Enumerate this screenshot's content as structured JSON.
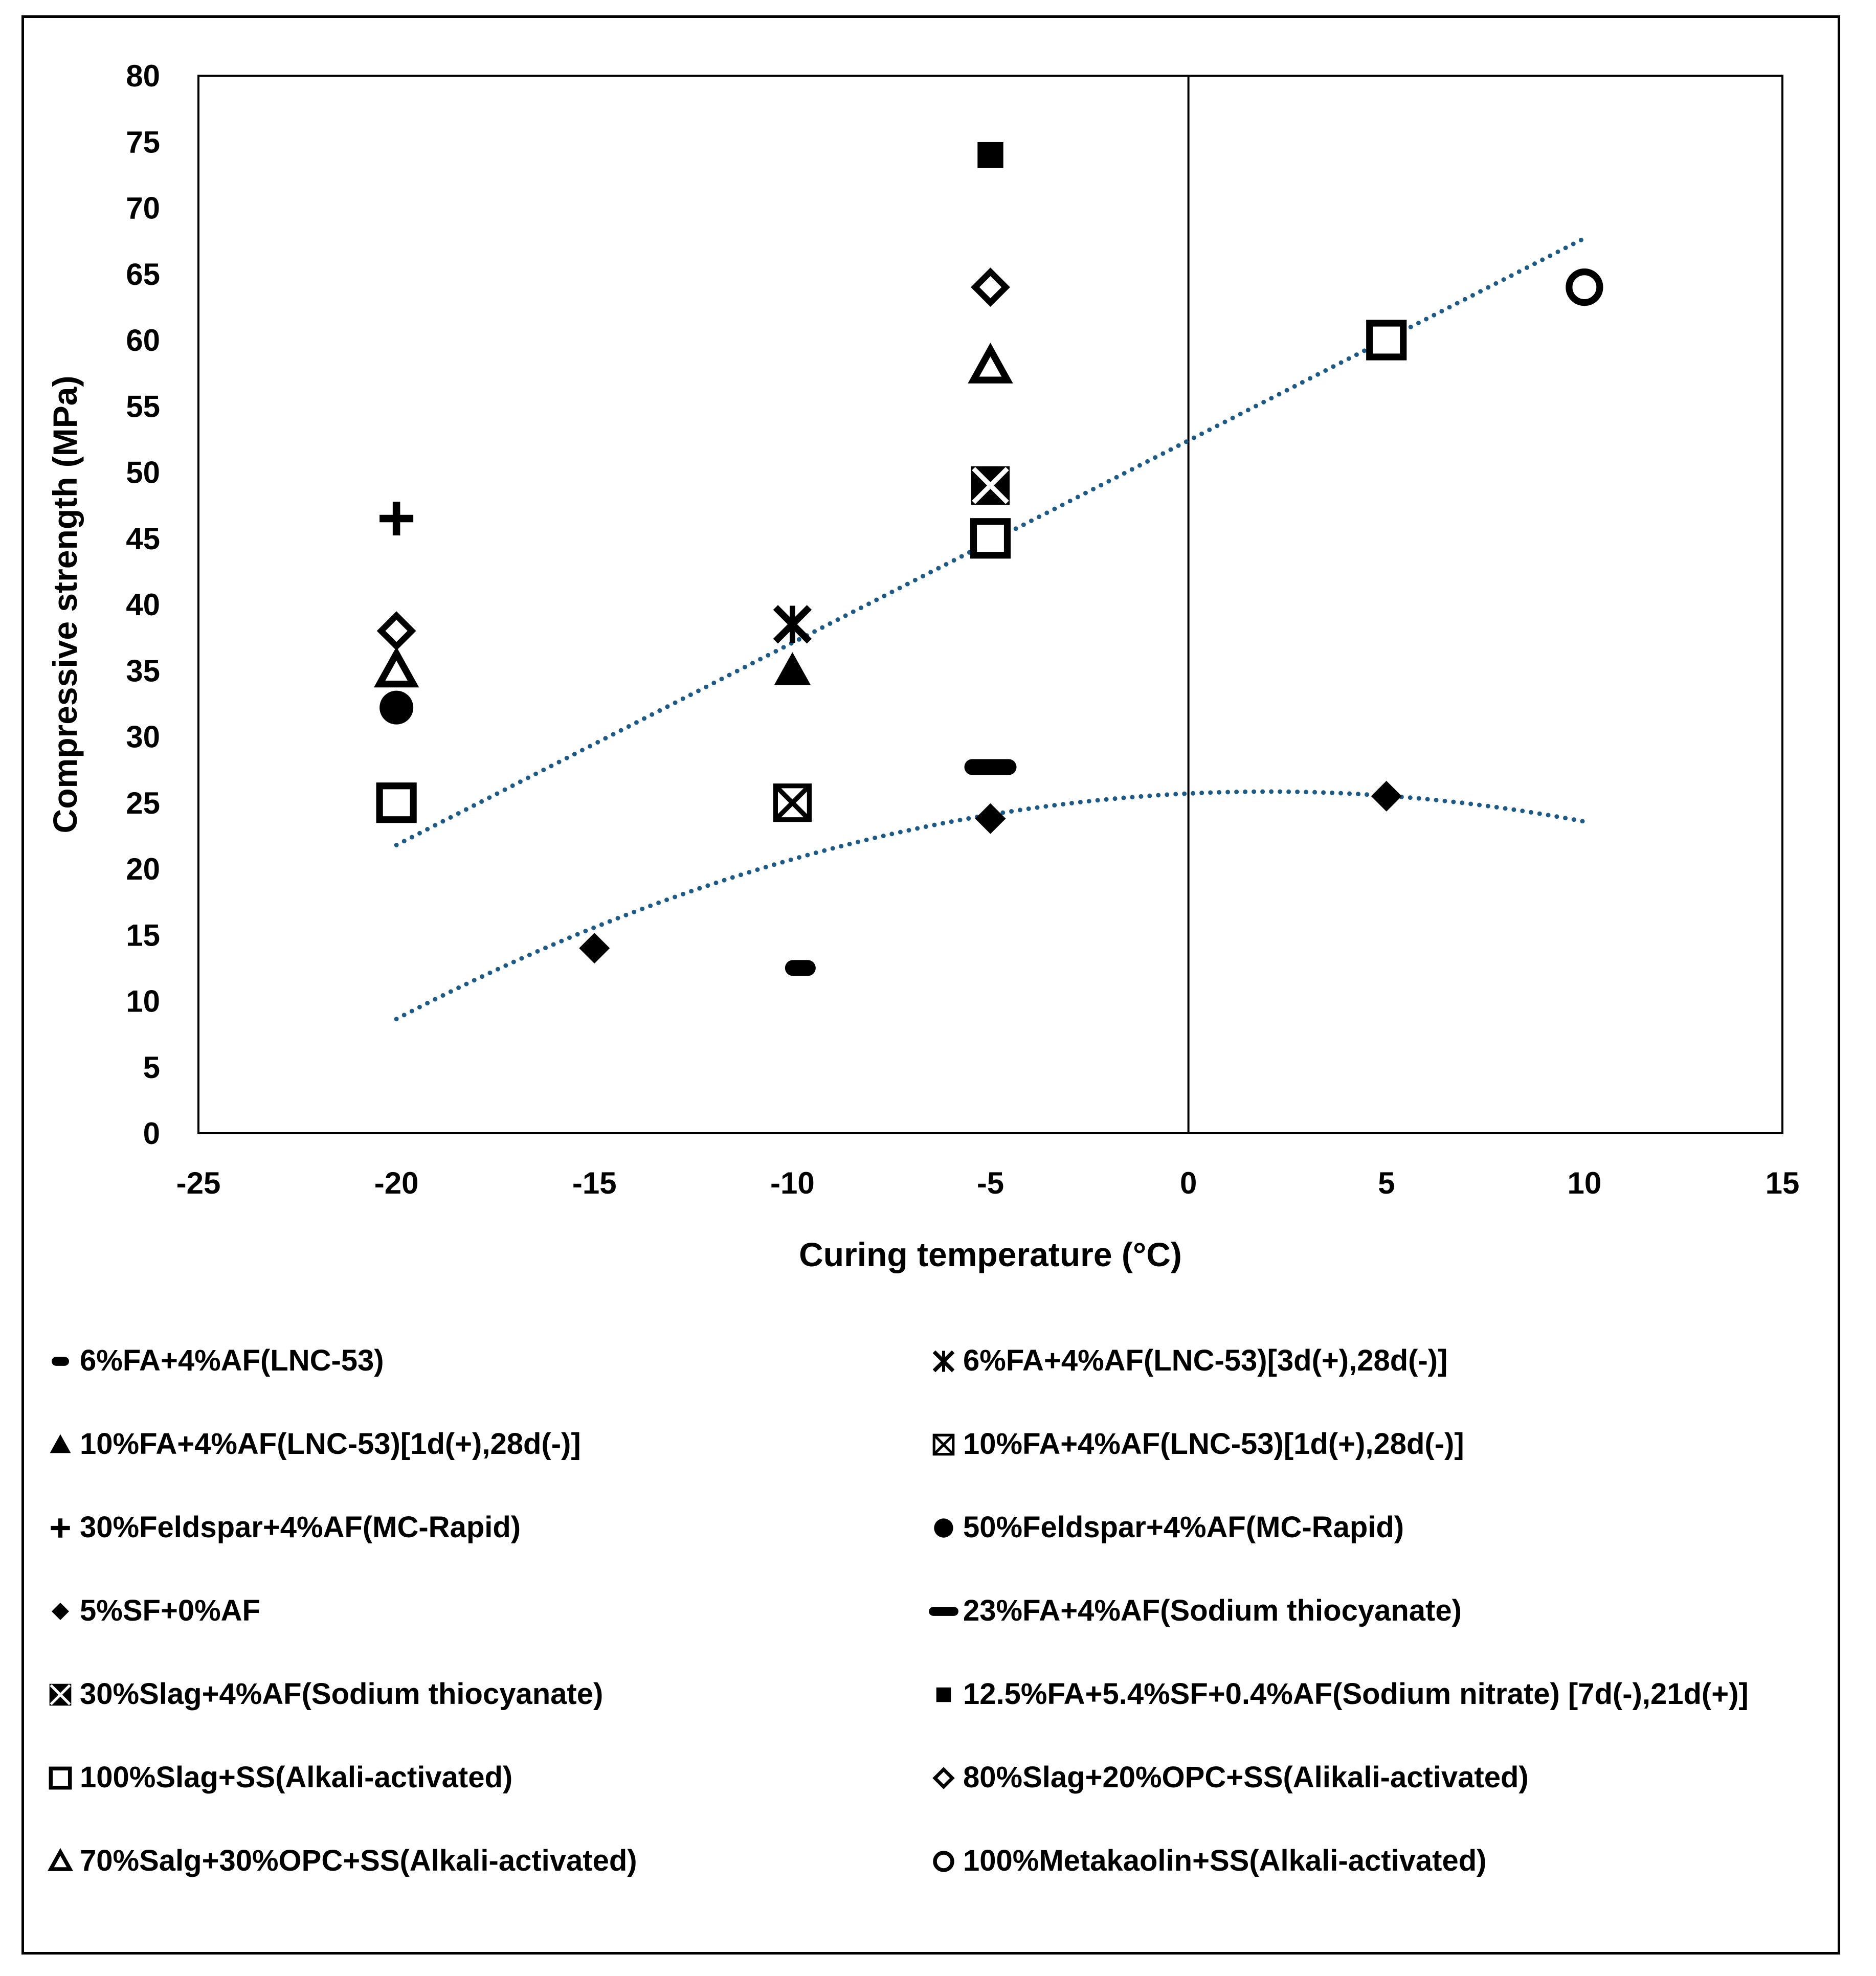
{
  "chart_data": {
    "type": "scatter",
    "title": "",
    "xlabel": "Curing temperature (°C)",
    "ylabel": "Compressive strength (MPa)",
    "xlim": [
      -25,
      15
    ],
    "ylim": [
      0,
      80
    ],
    "xticks": [
      -25,
      -20,
      -15,
      -10,
      -5,
      0,
      5,
      10,
      15
    ],
    "yticks": [
      0,
      5,
      10,
      15,
      20,
      25,
      30,
      35,
      40,
      45,
      50,
      55,
      60,
      65,
      70,
      75,
      80
    ],
    "grid": false,
    "legend_position": "bottom",
    "series": [
      {
        "name": "6%FA+4%AF(LNC-53)",
        "marker": "dash",
        "points": [
          [
            -9.8,
            12.5
          ]
        ]
      },
      {
        "name": "6%FA+4%AF(LNC-53)[3d(+),28d(-)]",
        "marker": "star",
        "points": [
          [
            -10,
            38.5
          ]
        ]
      },
      {
        "name": "10%FA+4%AF(LNC-53)[1d(+),28d(-)]",
        "marker": "triangle-filled",
        "points": [
          [
            -10,
            35
          ]
        ]
      },
      {
        "name": "10%FA+4%AF(LNC-53)[1d(+),28d(-)]",
        "marker": "square-x-light",
        "points": [
          [
            -10,
            25
          ]
        ]
      },
      {
        "name": "30%Feldspar+4%AF(MC-Rapid)",
        "marker": "plus",
        "points": [
          [
            -20,
            46.5
          ]
        ]
      },
      {
        "name": "50%Feldspar+4%AF(MC-Rapid)",
        "marker": "circle-filled",
        "points": [
          [
            -20,
            32.2
          ]
        ]
      },
      {
        "name": "5%SF+0%AF",
        "marker": "diamond-filled",
        "points": [
          [
            -15,
            14
          ],
          [
            -5,
            23.8
          ],
          [
            5,
            25.5
          ]
        ]
      },
      {
        "name": "23%FA+4%AF(Sodium thiocyanate)",
        "marker": "long-dash",
        "points": [
          [
            -5,
            27.7
          ]
        ]
      },
      {
        "name": "30%Slag+4%AF(Sodium thiocyanate)",
        "marker": "square-x",
        "points": [
          [
            -5,
            49
          ]
        ]
      },
      {
        "name": "12.5%FA+5.4%SF+0.4%AF(Sodium nitrate) [7d(-),21d(+)]",
        "marker": "square-filled",
        "points": [
          [
            -5,
            74
          ]
        ]
      },
      {
        "name": "100%Slag+SS(Alkali-activated)",
        "marker": "square-open",
        "points": [
          [
            -20,
            25
          ],
          [
            -5,
            45
          ],
          [
            5,
            60
          ]
        ]
      },
      {
        "name": "80%Slag+20%OPC+SS(Alikali-activated)",
        "marker": "diamond-open",
        "points": [
          [
            -20,
            38
          ],
          [
            -5,
            64
          ]
        ]
      },
      {
        "name": "70%Salg+30%OPC+SS(Alkali-activated)",
        "marker": "triangle-open",
        "points": [
          [
            -20,
            35
          ],
          [
            -5,
            58
          ]
        ]
      },
      {
        "name": "100%Metakaolin+SS(Alkali-activated)",
        "marker": "circle-open",
        "points": [
          [
            10,
            64
          ]
        ]
      }
    ],
    "trendlines": [
      {
        "name": "linear trend (100%Slag+SS)",
        "type": "linear",
        "x_range": [
          -20,
          10
        ],
        "coeffs": [
          52.4,
          1.53
        ],
        "color": "#1f5a85"
      },
      {
        "name": "polynomial trend (5%SF+0%AF)",
        "type": "poly2",
        "x_range": [
          -20,
          10
        ],
        "coeffs": [
          25.7,
          0.143,
          -0.0355
        ],
        "color": "#1f5a85"
      }
    ],
    "reference_line": {
      "x": 0,
      "color": "#000000"
    }
  }
}
